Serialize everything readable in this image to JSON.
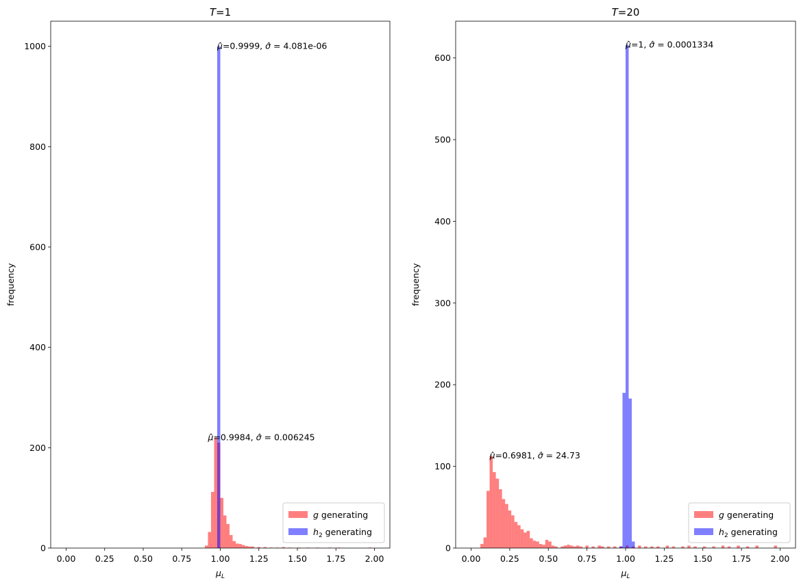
{
  "chart_data": [
    {
      "type": "bar",
      "subtype": "histogram",
      "title_var": "T",
      "title_eq": "=1",
      "xlabel_base": "μ",
      "xlabel_sub": "L",
      "ylabel": "frequency",
      "xlim": [
        -0.1,
        2.1
      ],
      "ylim": [
        0,
        1050
      ],
      "xticks": [
        0.0,
        0.25,
        0.5,
        0.75,
        1.0,
        1.25,
        1.5,
        1.75,
        2.0
      ],
      "xtick_labels": [
        "0.00",
        "0.25",
        "0.50",
        "0.75",
        "1.00",
        "1.25",
        "1.50",
        "1.75",
        "2.00"
      ],
      "yticks": [
        0,
        200,
        400,
        600,
        800,
        1000
      ],
      "ytick_labels": [
        "0",
        "200",
        "400",
        "600",
        "800",
        "1000"
      ],
      "bin_width": 0.02,
      "series": [
        {
          "name": "g generating",
          "legend_var": "g",
          "legend_sub": "",
          "legend_rest": " generating",
          "color": "#ff0000",
          "opacity": 0.5,
          "bins": [
            [
              0.9,
              5
            ],
            [
              0.92,
              32
            ],
            [
              0.94,
              112
            ],
            [
              0.96,
              220
            ],
            [
              0.98,
              210
            ],
            [
              1.0,
              100
            ],
            [
              1.02,
              65
            ],
            [
              1.04,
              48
            ],
            [
              1.06,
              26
            ],
            [
              1.08,
              14
            ],
            [
              1.1,
              9
            ],
            [
              1.12,
              8
            ],
            [
              1.14,
              6
            ],
            [
              1.16,
              4
            ],
            [
              1.18,
              3
            ],
            [
              1.2,
              3
            ],
            [
              1.24,
              2
            ],
            [
              1.28,
              2
            ],
            [
              1.32,
              1
            ],
            [
              1.36,
              1
            ],
            [
              1.4,
              2
            ],
            [
              1.44,
              1
            ],
            [
              1.5,
              1
            ],
            [
              1.56,
              1
            ],
            [
              1.62,
              1
            ],
            [
              1.7,
              1
            ],
            [
              1.76,
              1
            ],
            [
              1.96,
              1
            ]
          ]
        },
        {
          "name": "h2 generating",
          "legend_var": "h",
          "legend_sub": "2",
          "legend_rest": " generating",
          "color": "#0000ff",
          "opacity": 0.5,
          "bins": [
            [
              0.98,
              1000
            ]
          ]
        }
      ],
      "annotations": [
        {
          "x": 0.98,
          "y": 1000,
          "mu": "=0.9999, ",
          "sigma": " = 4.081e-06"
        },
        {
          "x": 0.92,
          "y": 220,
          "mu": "=0.9984, ",
          "sigma": " = 0.006245"
        }
      ],
      "legend_position": "lower-right"
    },
    {
      "type": "bar",
      "subtype": "histogram",
      "title_var": "T",
      "title_eq": "=20",
      "xlabel_base": "μ",
      "xlabel_sub": "L",
      "ylabel": "frequency",
      "xlim": [
        -0.1,
        2.1
      ],
      "ylim": [
        0,
        645
      ],
      "xticks": [
        0.0,
        0.25,
        0.5,
        0.75,
        1.0,
        1.25,
        1.5,
        1.75,
        2.0
      ],
      "xtick_labels": [
        "0.00",
        "0.25",
        "0.50",
        "0.75",
        "1.00",
        "1.25",
        "1.50",
        "1.75",
        "2.00"
      ],
      "yticks": [
        0,
        100,
        200,
        300,
        400,
        500,
        600
      ],
      "ytick_labels": [
        "0",
        "100",
        "200",
        "300",
        "400",
        "500",
        "600"
      ],
      "bin_width": 0.02,
      "series": [
        {
          "name": "g generating",
          "legend_var": "g",
          "legend_sub": "",
          "legend_rest": " generating",
          "color": "#ff0000",
          "opacity": 0.5,
          "bins": [
            [
              0.06,
              5
            ],
            [
              0.08,
              13
            ],
            [
              0.1,
              70
            ],
            [
              0.12,
              113
            ],
            [
              0.14,
              93
            ],
            [
              0.16,
              85
            ],
            [
              0.18,
              72
            ],
            [
              0.2,
              60
            ],
            [
              0.22,
              54
            ],
            [
              0.24,
              46
            ],
            [
              0.26,
              40
            ],
            [
              0.28,
              32
            ],
            [
              0.3,
              28
            ],
            [
              0.32,
              23
            ],
            [
              0.34,
              19
            ],
            [
              0.36,
              21
            ],
            [
              0.38,
              12
            ],
            [
              0.4,
              9
            ],
            [
              0.42,
              8
            ],
            [
              0.44,
              5
            ],
            [
              0.46,
              4
            ],
            [
              0.48,
              10
            ],
            [
              0.5,
              8
            ],
            [
              0.52,
              3
            ],
            [
              0.54,
              2
            ],
            [
              0.58,
              2
            ],
            [
              0.6,
              3
            ],
            [
              0.62,
              4
            ],
            [
              0.64,
              3
            ],
            [
              0.66,
              2
            ],
            [
              0.68,
              3
            ],
            [
              0.7,
              2
            ],
            [
              0.74,
              3
            ],
            [
              0.78,
              2
            ],
            [
              0.82,
              3
            ],
            [
              0.84,
              2
            ],
            [
              0.88,
              2
            ],
            [
              0.92,
              2
            ],
            [
              0.96,
              2
            ],
            [
              1.0,
              3
            ],
            [
              1.04,
              2
            ],
            [
              1.08,
              3
            ],
            [
              1.12,
              2
            ],
            [
              1.16,
              2
            ],
            [
              1.2,
              2
            ],
            [
              1.26,
              3
            ],
            [
              1.3,
              2
            ],
            [
              1.36,
              2
            ],
            [
              1.4,
              3
            ],
            [
              1.44,
              2
            ],
            [
              1.5,
              2
            ],
            [
              1.56,
              2
            ],
            [
              1.62,
              3
            ],
            [
              1.66,
              2
            ],
            [
              1.72,
              3
            ],
            [
              1.78,
              2
            ],
            [
              1.84,
              3
            ],
            [
              1.96,
              3
            ]
          ]
        },
        {
          "name": "h2 generating",
          "legend_var": "h",
          "legend_sub": "2",
          "legend_rest": " generating",
          "color": "#0000ff",
          "opacity": 0.5,
          "bins": [
            [
              0.96,
              2
            ],
            [
              0.98,
              190
            ],
            [
              1.0,
              616
            ],
            [
              1.02,
              183
            ],
            [
              1.04,
              8
            ]
          ]
        }
      ],
      "annotations": [
        {
          "x": 1.0,
          "y": 616,
          "mu": "=1, ",
          "sigma": " = 0.0001334"
        },
        {
          "x": 0.12,
          "y": 113,
          "mu": "=0.6981, ",
          "sigma": " = 24.73"
        }
      ],
      "legend_position": "lower-right"
    }
  ]
}
